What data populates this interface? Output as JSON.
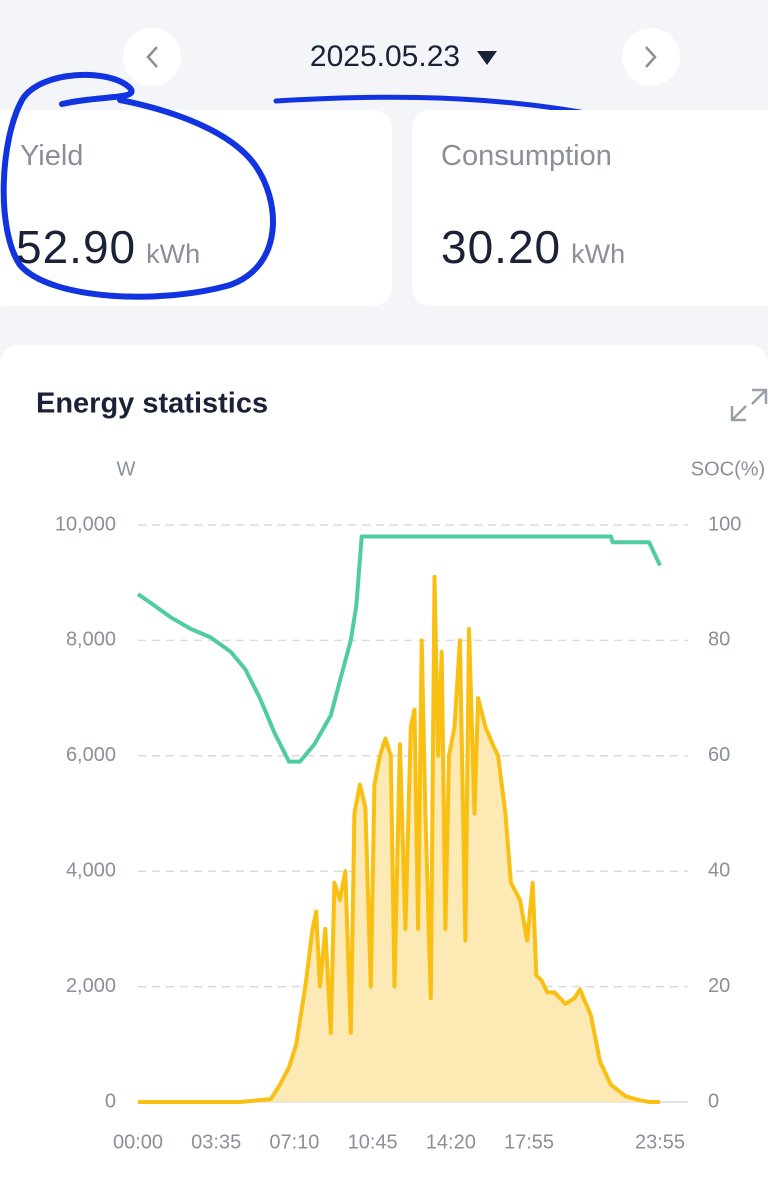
{
  "header": {
    "date": "2025.05.23"
  },
  "cards": [
    {
      "label": "Yield",
      "value": "52.90",
      "unit": "kWh"
    },
    {
      "label": "Consumption",
      "value": "30.20",
      "unit": "kWh"
    }
  ],
  "chart_data": {
    "type": "line",
    "title": "Energy statistics",
    "y_label": "W",
    "y2_label": "SOC(%)",
    "xlim": [
      "00:00",
      "23:55"
    ],
    "xticks": [
      "00:00",
      "03:35",
      "07:10",
      "10:45",
      "14:20",
      "17:55",
      "23:55"
    ],
    "ylim": [
      0,
      10000
    ],
    "yticks": [
      0,
      {
        "value": 2000,
        "label": "2,000"
      },
      {
        "value": 4000,
        "label": "4,000"
      },
      {
        "value": 6000,
        "label": "6,000"
      },
      {
        "value": 8000,
        "label": "8,000"
      },
      {
        "value": 10000,
        "label": "10,000"
      }
    ],
    "y2lim": [
      0,
      100
    ],
    "y2ticks": [
      0,
      20,
      40,
      60,
      80,
      100
    ],
    "grid": true,
    "series": [
      {
        "color": "#f9bf12",
        "fill": "#fce9b3",
        "x": [
          "00:00",
          "04:40",
          "06:05",
          "06:30",
          "06:55",
          "07:15",
          "07:40",
          "08:00",
          "08:10",
          "08:20",
          "08:35",
          "08:50",
          "09:00",
          "09:15",
          "09:30",
          "09:45",
          "09:55",
          "10:10",
          "10:25",
          "10:40",
          "10:50",
          "11:05",
          "11:20",
          "11:35",
          "11:45",
          "12:00",
          "12:15",
          "12:30",
          "12:40",
          "12:50",
          "13:00",
          "13:10",
          "13:25",
          "13:35",
          "13:45",
          "13:55",
          "14:05",
          "14:15",
          "14:30",
          "14:45",
          "15:00",
          "15:10",
          "15:25",
          "15:35",
          "15:55",
          "16:15",
          "16:30",
          "16:50",
          "17:05",
          "17:30",
          "17:50",
          "18:05",
          "18:15",
          "18:30",
          "18:45",
          "19:05",
          "19:35",
          "20:00",
          "20:15",
          "20:45",
          "21:10",
          "21:40",
          "22:20",
          "23:00",
          "23:25",
          "23:55"
        ],
        "values": [
          0,
          0,
          50,
          300,
          600,
          1000,
          2000,
          3000,
          3300,
          2000,
          3000,
          1200,
          3800,
          3500,
          4000,
          1200,
          5000,
          5500,
          5100,
          2000,
          5500,
          6000,
          6300,
          6000,
          2000,
          6200,
          3000,
          6500,
          6800,
          3000,
          8000,
          5000,
          1800,
          9100,
          6000,
          7800,
          3000,
          6000,
          6500,
          8000,
          2800,
          8200,
          5000,
          7000,
          6500,
          6200,
          6000,
          5000,
          3800,
          3500,
          2800,
          3800,
          2200,
          2100,
          1900,
          1900,
          1700,
          1800,
          1950,
          1500,
          700,
          300,
          100,
          30,
          0,
          0
        ]
      },
      {
        "color": "#4fcca0",
        "axis": "y2",
        "x": [
          "00:00",
          "00:35",
          "01:30",
          "02:25",
          "03:20",
          "04:15",
          "04:55",
          "05:35",
          "06:15",
          "06:55",
          "07:25",
          "08:05",
          "08:50",
          "09:15",
          "09:45",
          "10:00",
          "10:15",
          "12:00",
          "16:35",
          "21:40",
          "21:45",
          "23:25",
          "23:55"
        ],
        "values": [
          88,
          86.5,
          84,
          82,
          80.5,
          78,
          75,
          70,
          64,
          59,
          59,
          62,
          67,
          73,
          80,
          86,
          98,
          98,
          98,
          98,
          97,
          97,
          93
        ]
      }
    ]
  }
}
